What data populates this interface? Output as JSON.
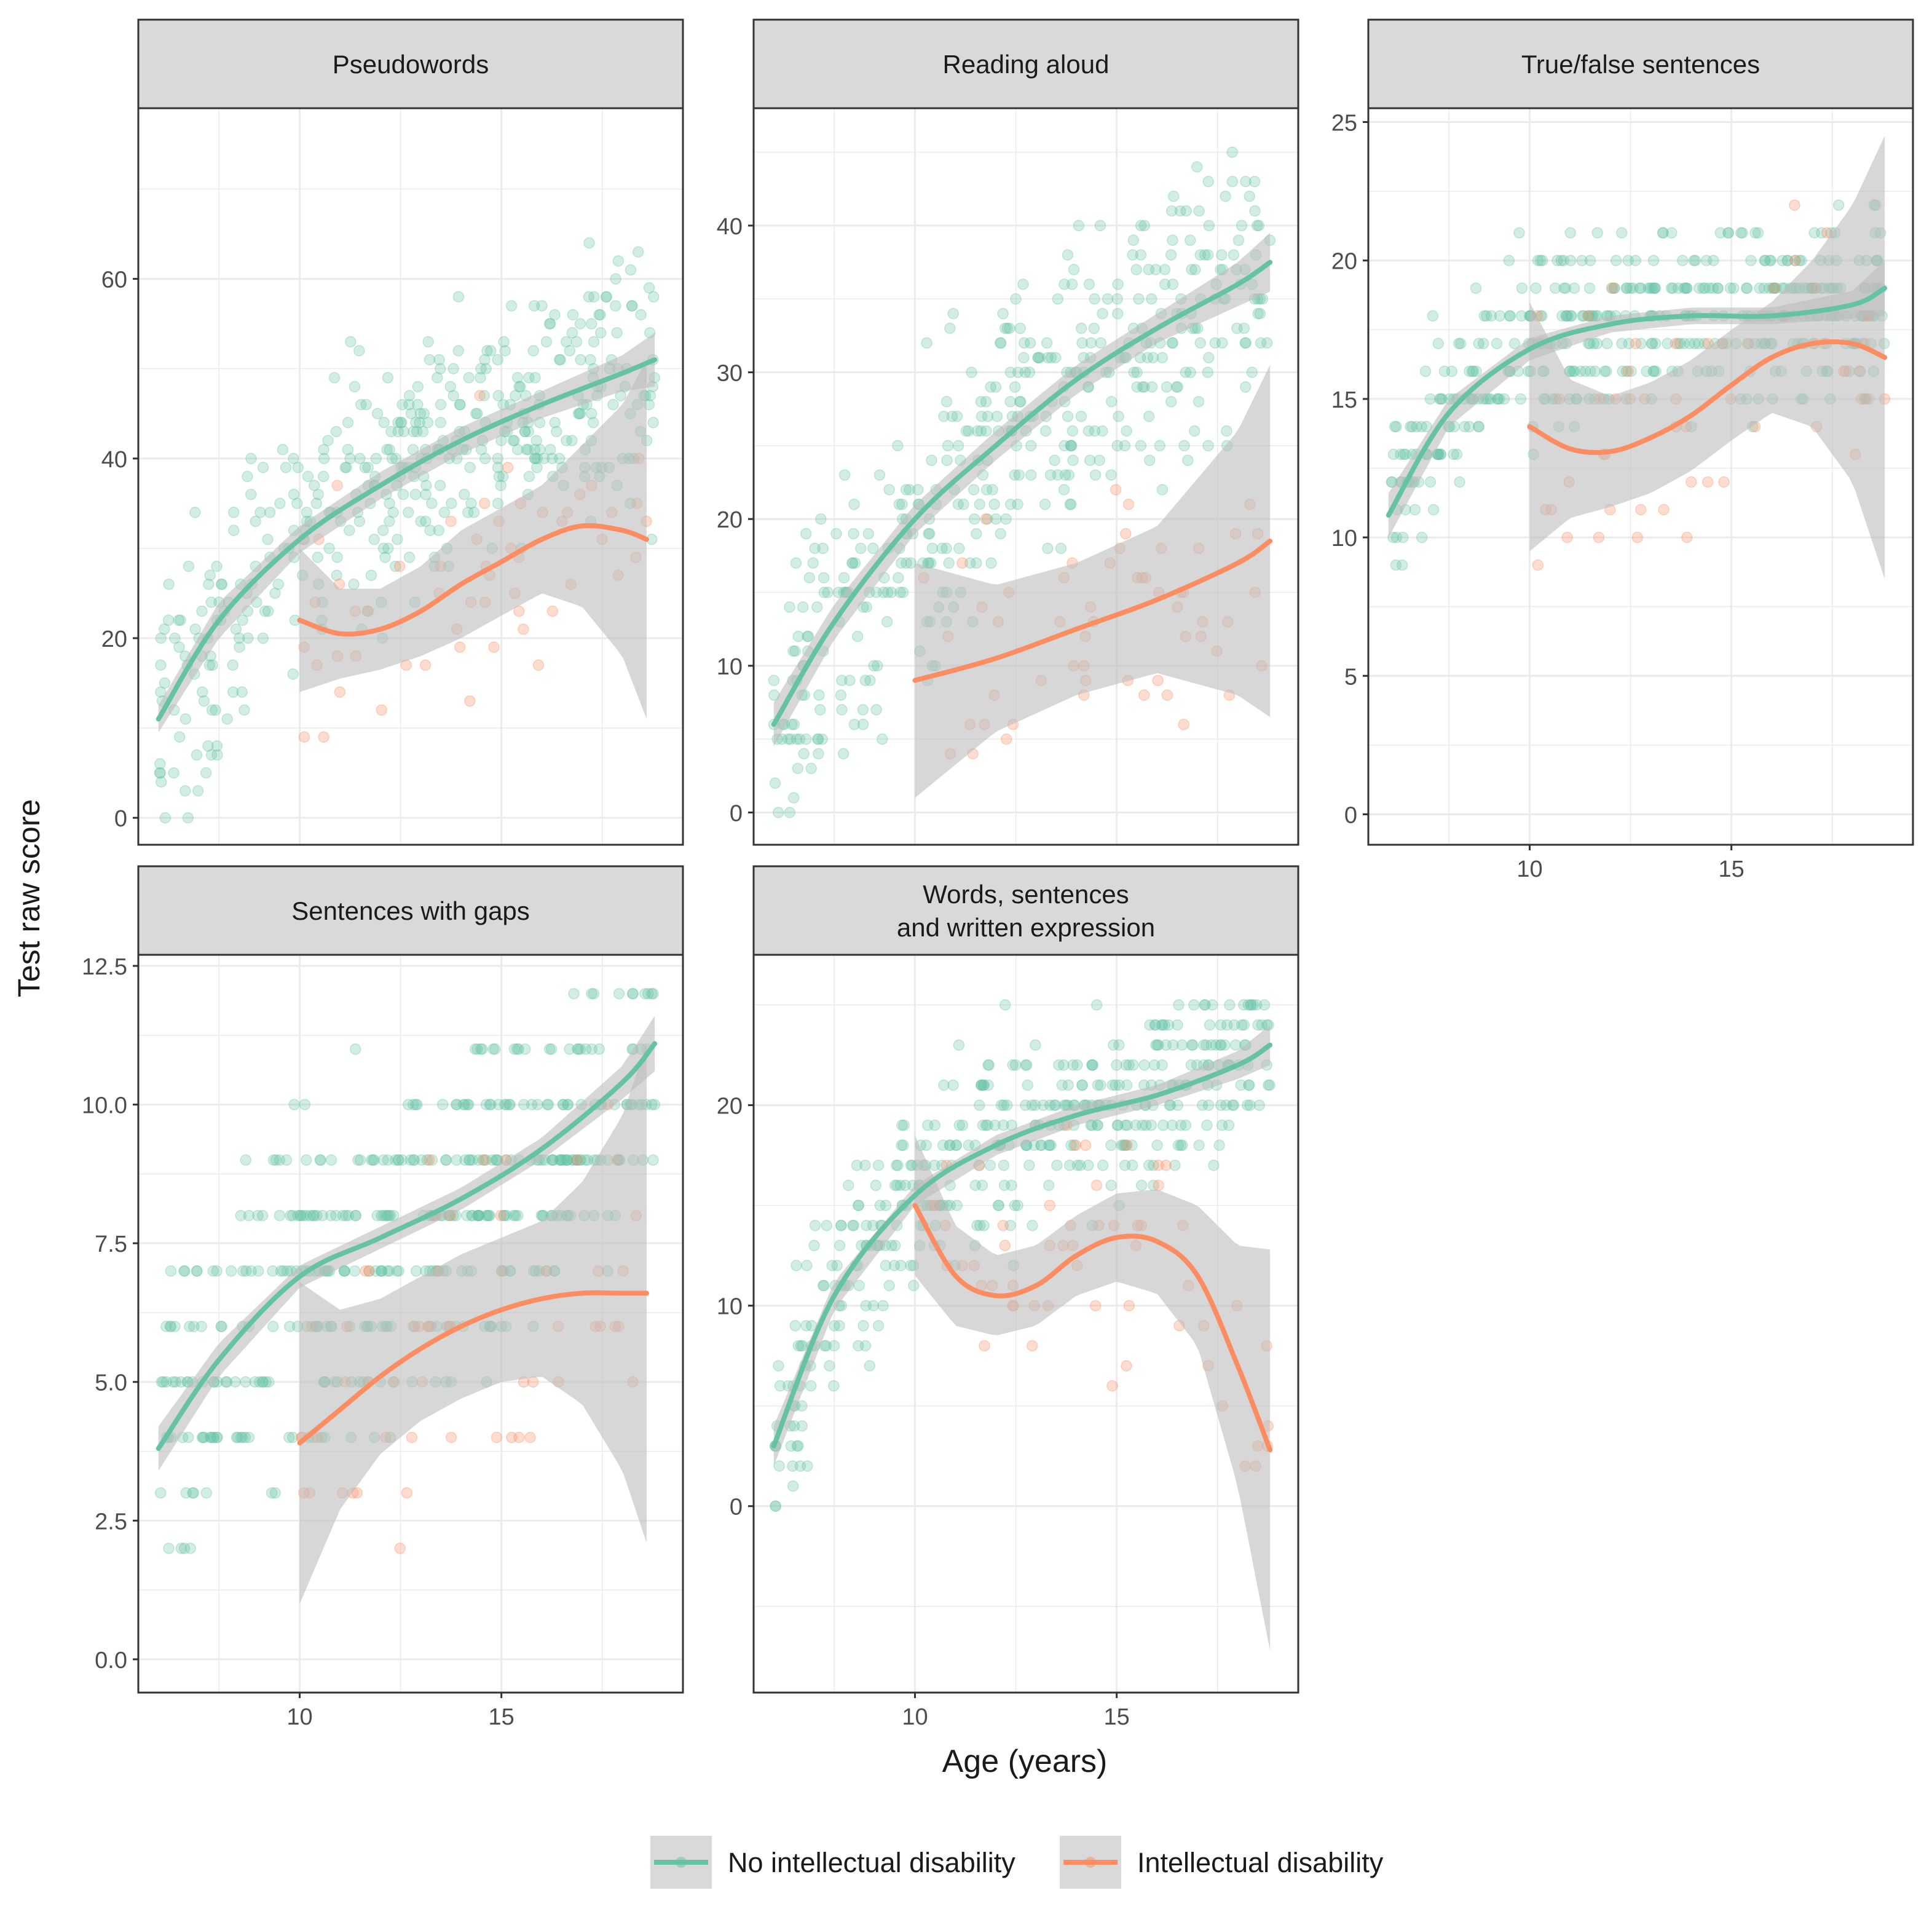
{
  "colors": {
    "no_id": "#66c2a5",
    "id": "#fc8d62",
    "ribbon": "#bdbdbd",
    "strip_bg": "#d9d9d9",
    "grid": "#ebebeb",
    "panel_border": "#333333",
    "text": "#1a1a1a",
    "tick_text": "#4d4d4d"
  },
  "labels": {
    "xlabel": "Age (years)",
    "ylabel": "Test raw score"
  },
  "legend": {
    "items": [
      {
        "key": "no_id",
        "label": "No intellectual disability"
      },
      {
        "key": "id",
        "label": "Intellectual disability"
      }
    ]
  },
  "chart_data": {
    "type": "scatter",
    "xlim": [
      6,
      19.5
    ],
    "x_ticks": [
      10,
      15
    ],
    "panels": [
      {
        "key": "pseudowords",
        "title": [
          "Pseudowords"
        ],
        "ylim": [
          -3,
          79
        ],
        "y_ticks": [
          0,
          20,
          40,
          60
        ],
        "y_tick_labels": [
          "0",
          "20",
          "40",
          "60"
        ],
        "show_x_axis": false,
        "series": {
          "no_id": {
            "x_range": [
              6.5,
              18.8
            ],
            "fit_x": [
              6.5,
              8,
              10,
              12,
              14,
              16,
              18,
              18.8
            ],
            "fit_y": [
              11,
              22,
              31,
              37,
              42,
              46,
              49.5,
              51
            ],
            "band": [
              1.5,
              2,
              1.5,
              1.5,
              1.5,
              1.5,
              2,
              3
            ],
            "spread": 9,
            "n": 420
          },
          "id": {
            "x_range": [
              10,
              18.6
            ],
            "fit_x": [
              10,
              11,
              12,
              13,
              14,
              15,
              16,
              17,
              18,
              18.6
            ],
            "fit_y": [
              22,
              20.5,
              21,
              23,
              26,
              28.5,
              31,
              32.5,
              32,
              31
            ],
            "band": [
              8,
              5,
              4.5,
              5,
              6,
              6,
              6,
              9,
              14,
              20
            ],
            "spread": 10,
            "n": 55
          }
        }
      },
      {
        "key": "reading_aloud",
        "title": [
          "Reading aloud"
        ],
        "ylim": [
          -2.2,
          48
        ],
        "y_ticks": [
          0,
          10,
          20,
          30,
          40
        ],
        "y_tick_labels": [
          "0",
          "10",
          "20",
          "30",
          "40"
        ],
        "show_x_axis": false,
        "series": {
          "no_id": {
            "x_range": [
              6.5,
              18.8
            ],
            "fit_x": [
              6.5,
              8,
              10,
              12,
              14,
              16,
              18,
              18.8
            ],
            "fit_y": [
              6,
              13,
              20,
              25,
              29.5,
              33,
              36,
              37.5
            ],
            "band": [
              1.5,
              1.2,
              1,
              1,
              1,
              1,
              1.5,
              2
            ],
            "spread": 6,
            "n": 420
          },
          "id": {
            "x_range": [
              10,
              18.8
            ],
            "fit_x": [
              10,
              12,
              14,
              16,
              18,
              18.8
            ],
            "fit_y": [
              9,
              10.5,
              12.5,
              14.5,
              17,
              18.5
            ],
            "band": [
              8,
              5,
              4.5,
              5,
              9,
              12
            ],
            "spread": 6,
            "n": 55
          }
        }
      },
      {
        "key": "true_false",
        "title": [
          "True/false sentences"
        ],
        "ylim": [
          -1.1,
          25.5
        ],
        "y_ticks": [
          0,
          5,
          10,
          15,
          20,
          25
        ],
        "y_tick_labels": [
          "0",
          "5",
          "10",
          "15",
          "20",
          "25"
        ],
        "show_x_axis": true,
        "series": {
          "no_id": {
            "x_range": [
              6.5,
              18.8
            ],
            "fit_x": [
              6.5,
              8,
              10,
              12,
              14,
              16,
              18,
              18.8
            ],
            "fit_y": [
              10.8,
              14.5,
              16.8,
              17.7,
              18,
              18,
              18.4,
              19
            ],
            "band": [
              0.8,
              0.5,
              0.4,
              0.3,
              0.3,
              0.3,
              0.5,
              1
            ],
            "spread": 2,
            "n": 420
          },
          "id": {
            "x_range": [
              10,
              18.8
            ],
            "fit_x": [
              10,
              11,
              12,
              13,
              14,
              15,
              16,
              17,
              18,
              18.8
            ],
            "fit_y": [
              14,
              13.2,
              13.1,
              13.6,
              14.4,
              15.5,
              16.5,
              17,
              17,
              16.5
            ],
            "band": [
              4.5,
              2.5,
              2,
              2,
              2,
              2,
              2,
              3,
              5,
              8
            ],
            "spread": 3,
            "n": 55
          }
        }
      },
      {
        "key": "sentences_gaps",
        "title": [
          "Sentences with gaps"
        ],
        "ylim": [
          -0.6,
          12.7
        ],
        "y_ticks": [
          0,
          2.5,
          5,
          7.5,
          10,
          12.5
        ],
        "y_tick_labels": [
          "0.0",
          "2.5",
          "5.0",
          "7.5",
          "10.0",
          "12.5"
        ],
        "show_x_axis": true,
        "series": {
          "no_id": {
            "x_range": [
              6.5,
              18.8
            ],
            "fit_x": [
              6.5,
              8,
              10,
              12,
              14,
              16,
              18,
              18.8
            ],
            "fit_y": [
              3.8,
              5.4,
              6.9,
              7.6,
              8.3,
              9.2,
              10.4,
              11.1
            ],
            "band": [
              0.4,
              0.3,
              0.2,
              0.2,
              0.2,
              0.2,
              0.3,
              0.5
            ],
            "spread": 1.8,
            "n": 420
          },
          "id": {
            "x_range": [
              10,
              18.6
            ],
            "fit_x": [
              10,
              11,
              12,
              13,
              14,
              15,
              16,
              17,
              18,
              18.6
            ],
            "fit_y": [
              3.9,
              4.5,
              5.1,
              5.6,
              6,
              6.3,
              6.5,
              6.6,
              6.6,
              6.6
            ],
            "band": [
              2.9,
              1.8,
              1.4,
              1.3,
              1.3,
              1.3,
              1.4,
              2,
              3.2,
              4.5
            ],
            "spread": 2,
            "n": 55
          }
        }
      },
      {
        "key": "words_written",
        "title": [
          "Words, sentences",
          "and written expression"
        ],
        "ylim": [
          -9.3,
          27.5
        ],
        "y_ticks": [
          0,
          10,
          20
        ],
        "y_tick_labels": [
          "0",
          "10",
          "20"
        ],
        "show_x_axis": true,
        "series": {
          "no_id": {
            "x_range": [
              6.5,
              18.8
            ],
            "fit_x": [
              6.5,
              8,
              10,
              12,
              14,
              16,
              18,
              18.8
            ],
            "fit_y": [
              3,
              10.5,
              15.5,
              18,
              19.5,
              20.5,
              22,
              23
            ],
            "band": [
              1,
              0.7,
              0.5,
              0.5,
              0.5,
              0.5,
              0.7,
              1
            ],
            "spread": 3,
            "n": 420
          },
          "id": {
            "x_range": [
              10,
              18.8
            ],
            "fit_x": [
              10,
              11,
              12,
              13,
              14,
              15,
              16,
              17,
              18,
              18.8
            ],
            "fit_y": [
              15,
              11.5,
              10.5,
              11,
              12.5,
              13.4,
              13.2,
              11.5,
              7,
              2.8
            ],
            "band": [
              3.5,
              2.5,
              2,
              2,
              2,
              2.2,
              2.6,
              3.5,
              6,
              10
            ],
            "spread": 4,
            "n": 55
          }
        }
      }
    ]
  }
}
